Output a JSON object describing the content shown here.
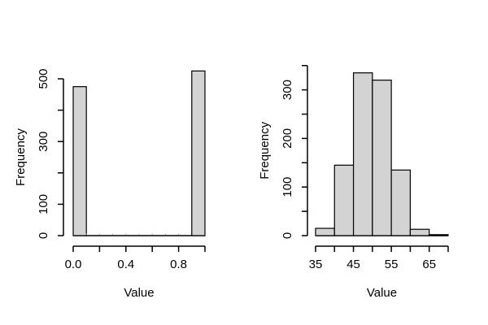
{
  "figure": {
    "background": "#ffffff",
    "bar_fill": "#d3d3d3",
    "bar_stroke": "#000000",
    "axis_color": "#000000",
    "zero_bin_nub_color": "#b8b8b8"
  },
  "chart_data": [
    {
      "type": "bar",
      "kind": "histogram",
      "panel": "left",
      "title": "",
      "xlabel": "Value",
      "ylabel": "Frequency",
      "bin_start": 0.0,
      "bin_width": 0.1,
      "bin_edges": [
        0.0,
        0.1,
        0.2,
        0.3,
        0.4,
        0.5,
        0.6,
        0.7,
        0.8,
        0.9,
        1.0
      ],
      "counts": [
        475,
        0,
        0,
        0,
        0,
        0,
        0,
        0,
        0,
        525
      ],
      "xlim": [
        0.0,
        1.0
      ],
      "ylim": [
        0,
        550
      ],
      "x_ticks": [
        0.0,
        0.2,
        0.4,
        0.6,
        0.8,
        1.0
      ],
      "x_tick_labels": [
        "0.0",
        "",
        "0.4",
        "",
        "0.8",
        ""
      ],
      "y_ticks": [
        0,
        100,
        200,
        300,
        400,
        500
      ],
      "y_tick_labels": [
        "0",
        "100",
        "",
        "300",
        "",
        "500"
      ],
      "grid": false,
      "legend": false
    },
    {
      "type": "bar",
      "kind": "histogram",
      "panel": "right",
      "title": "",
      "xlabel": "Value",
      "ylabel": "Frequency",
      "bin_start": 35,
      "bin_width": 5,
      "bin_edges": [
        35,
        40,
        45,
        50,
        55,
        60,
        65,
        70
      ],
      "counts": [
        15,
        145,
        335,
        320,
        135,
        13,
        2
      ],
      "xlim": [
        35,
        70
      ],
      "ylim": [
        0,
        360
      ],
      "x_ticks": [
        35,
        40,
        45,
        50,
        55,
        60,
        65,
        70
      ],
      "x_tick_labels": [
        "35",
        "",
        "45",
        "",
        "55",
        "",
        "65",
        ""
      ],
      "y_ticks": [
        0,
        50,
        100,
        150,
        200,
        250,
        300,
        350
      ],
      "y_tick_labels": [
        "0",
        "",
        "100",
        "",
        "200",
        "",
        "300",
        ""
      ],
      "grid": false,
      "legend": false
    }
  ]
}
